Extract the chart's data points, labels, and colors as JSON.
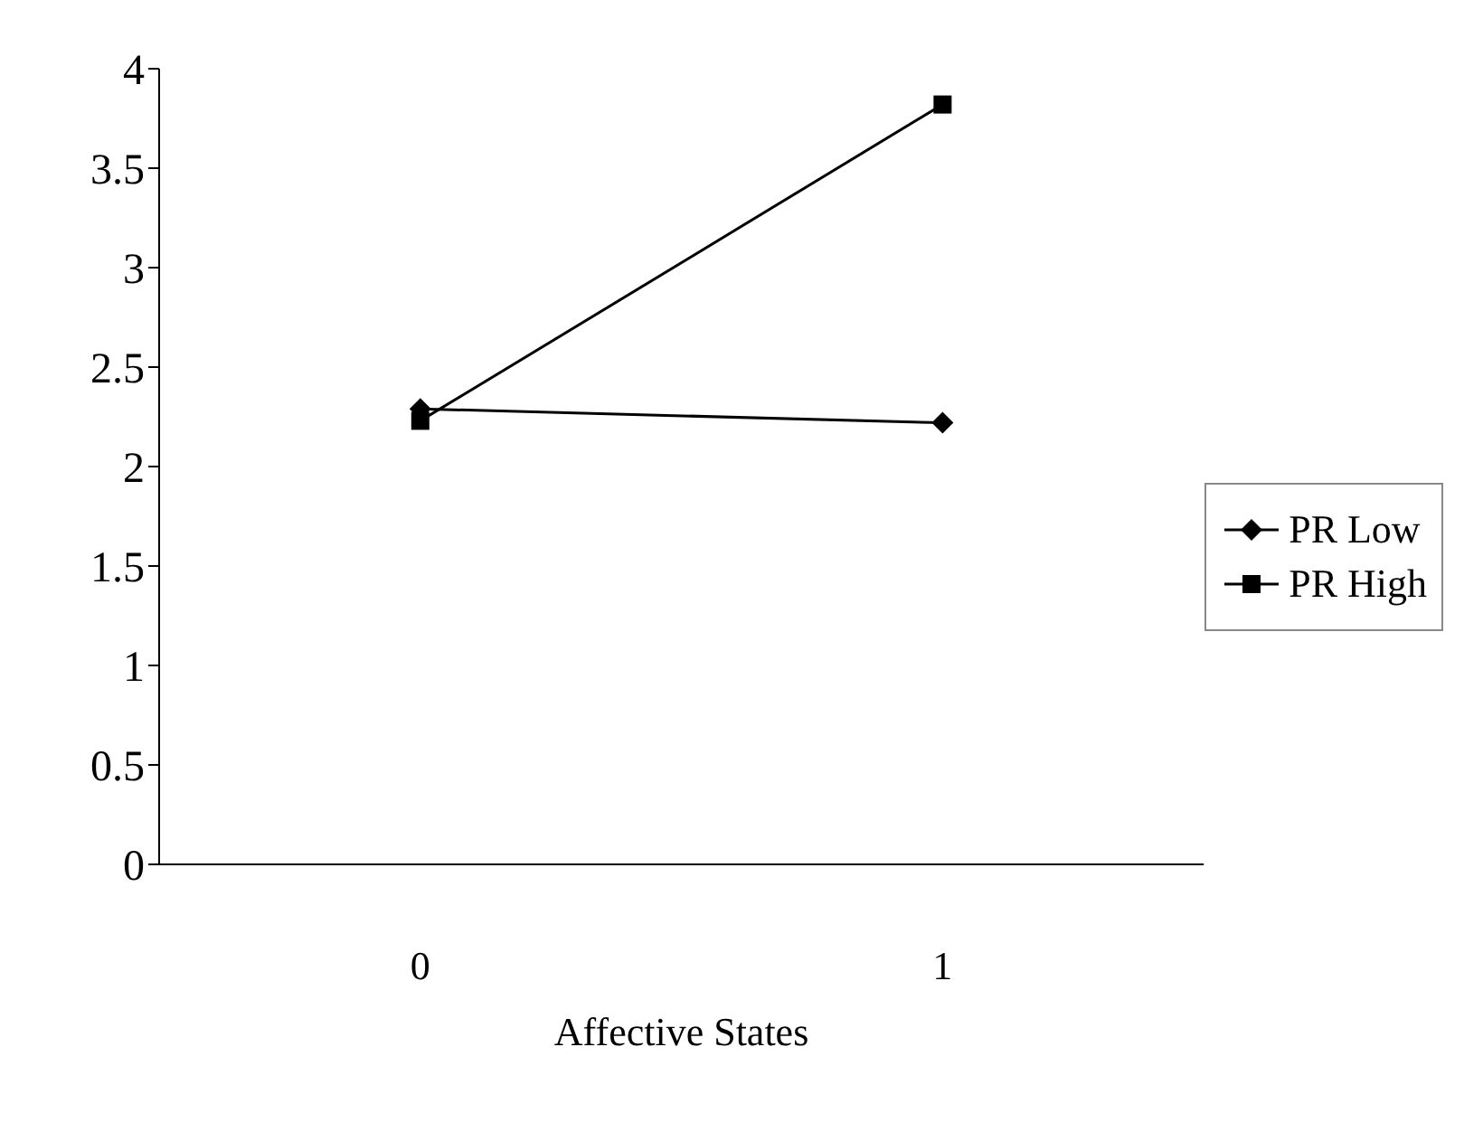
{
  "chart_data": {
    "type": "line",
    "xlabel": "Affective States",
    "categories": [
      "0",
      "1"
    ],
    "series": [
      {
        "name": "PR Low",
        "color": "#000000",
        "marker": "diamond",
        "values": [
          2.29,
          2.22
        ]
      },
      {
        "name": "PR High",
        "color": "#000000",
        "marker": "square",
        "values": [
          2.23,
          3.82
        ]
      }
    ],
    "ylim": [
      0,
      4
    ],
    "yticks": [
      0,
      0.5,
      1,
      1.5,
      2,
      2.5,
      3,
      3.5,
      4
    ],
    "grid": false,
    "legend": "right",
    "line_style": "solid"
  }
}
